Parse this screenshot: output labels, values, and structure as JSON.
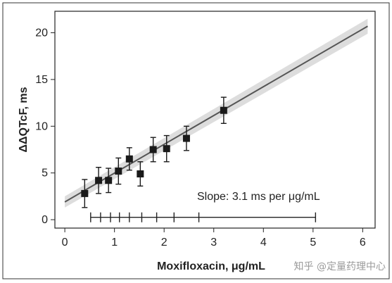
{
  "chart_data": {
    "type": "scatter",
    "xlabel": "Moxifloxacin, μg/mL",
    "ylabel": "ΔΔQTcF, ms",
    "xlim": [
      -0.2,
      6.25
    ],
    "ylim": [
      -0.9,
      22.3
    ],
    "xticks": [
      0,
      1,
      2,
      3,
      4,
      5,
      6
    ],
    "yticks": [
      0,
      5,
      10,
      15,
      20
    ],
    "grid": false,
    "series": [
      {
        "values": [
          {
            "x": 0.4,
            "y": 2.8,
            "err": 1.5
          },
          {
            "x": 0.68,
            "y": 4.2,
            "err": 1.4
          },
          {
            "x": 0.88,
            "y": 4.2,
            "err": 1.3
          },
          {
            "x": 1.08,
            "y": 5.2,
            "err": 1.4
          },
          {
            "x": 1.3,
            "y": 6.5,
            "err": 1.2
          },
          {
            "x": 1.52,
            "y": 4.9,
            "err": 1.3
          },
          {
            "x": 1.78,
            "y": 7.5,
            "err": 1.3
          },
          {
            "x": 2.05,
            "y": 7.6,
            "err": 1.4
          },
          {
            "x": 2.45,
            "y": 8.7,
            "err": 1.3
          },
          {
            "x": 3.2,
            "y": 11.7,
            "err": 1.4
          }
        ]
      }
    ],
    "regression": {
      "x_start": 0.0,
      "y_start": 1.9,
      "x_end": 6.1,
      "y_end": 20.7,
      "ci_halfwidth_start": 0.6,
      "ci_halfwidth_end": 0.8
    },
    "annotation": "Slope: 3.1 ms per μg/mL",
    "rug": {
      "x_start": 0.52,
      "x_end": 5.05,
      "ticks": [
        0.52,
        0.72,
        0.92,
        1.1,
        1.3,
        1.55,
        1.85,
        2.2,
        2.7,
        5.05
      ]
    },
    "colors": {
      "marker": "#1a1a1a",
      "line": "#555555",
      "band": "#d9d9d9",
      "axis": "#222222"
    }
  },
  "watermark": "知乎 @定量药理中心"
}
